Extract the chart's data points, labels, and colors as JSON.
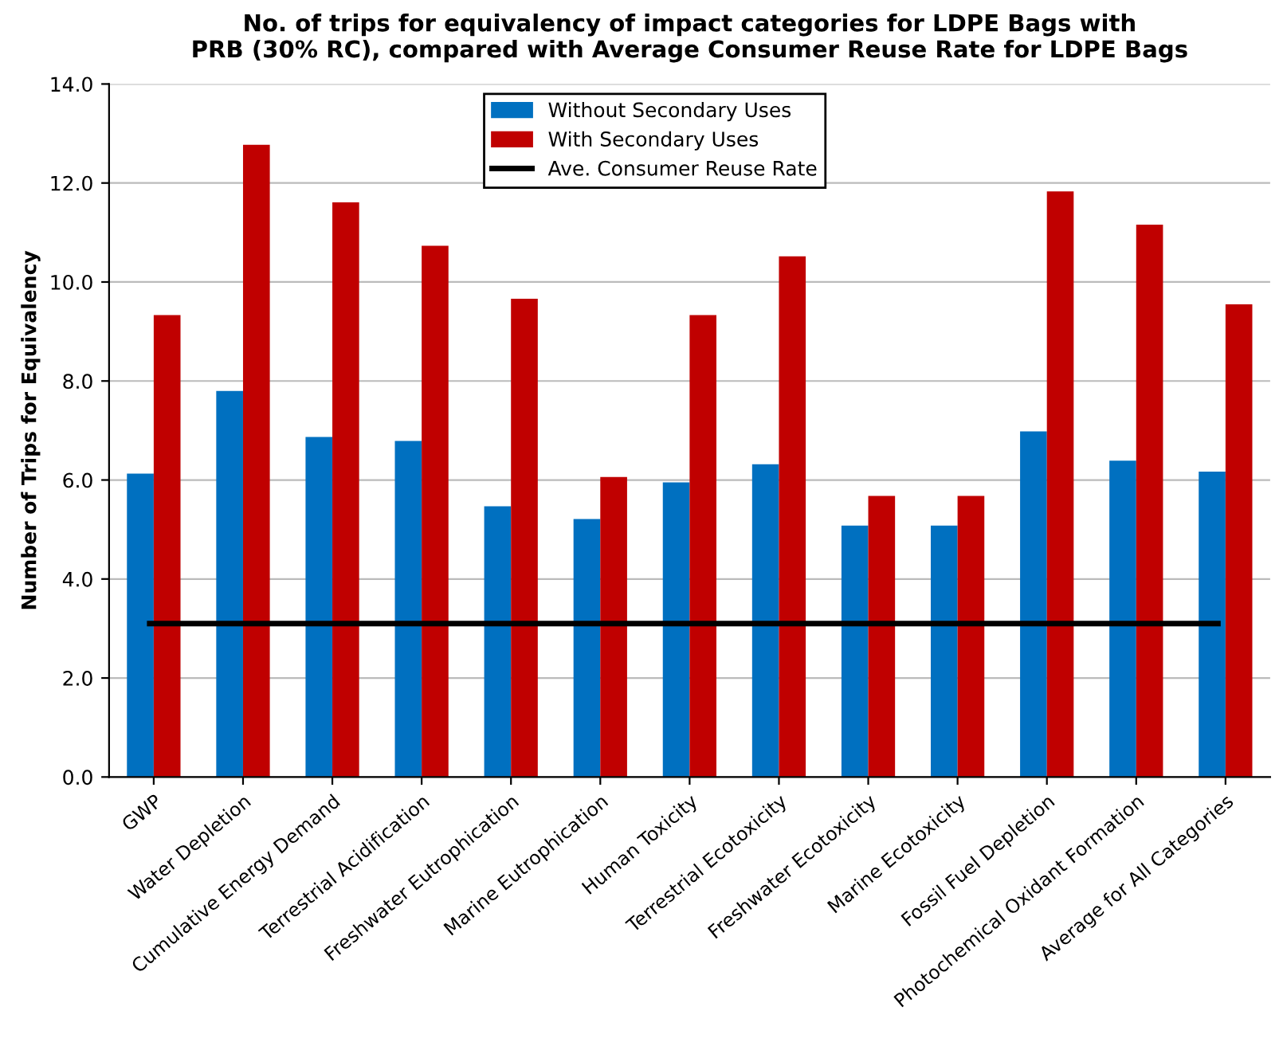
{
  "chart_data": {
    "type": "bar",
    "title": "No. of trips for equivalency of impact categories for LDPE Bags with\nPRB (30% RC), compared with Average Consumer Reuse Rate for LDPE Bags",
    "ylabel": "Number of Trips for Equivalency",
    "categories": [
      "GWP",
      "Water Depletion",
      "Cumulative Energy Demand",
      "Terrestrial Acidification",
      "Freshwater Eutrophication",
      "Marine Eutrophication",
      "Human Toxicity",
      "Terrestrial Ecotoxicity",
      "Freshwater Ecotoxicity",
      "Marine Ecotoxicity",
      "Fossil Fuel Depletion",
      "Photochemical Oxidant Formation",
      "Average for All Categories"
    ],
    "series": [
      {
        "name": "Without Secondary Uses",
        "color": "#0070c0",
        "values": [
          6.13,
          7.8,
          6.87,
          6.79,
          5.47,
          5.21,
          5.95,
          6.32,
          5.08,
          5.08,
          6.98,
          6.39,
          6.17
        ]
      },
      {
        "name": "With Secondary Uses",
        "color": "#c00000",
        "values": [
          9.33,
          12.77,
          11.61,
          10.73,
          9.66,
          6.06,
          9.33,
          10.52,
          5.68,
          5.68,
          11.83,
          11.16,
          9.55
        ]
      }
    ],
    "ref_lines": [
      {
        "axis": "y",
        "value": 3.1,
        "label": "Ave. Consumer Reuse Rate",
        "color": "#000000"
      }
    ],
    "ylim": [
      0,
      14
    ],
    "yticks": [
      {
        "value": 0,
        "label": "0.0"
      },
      {
        "value": 2,
        "label": "2.0"
      },
      {
        "value": 4,
        "label": "4.0"
      },
      {
        "value": 6,
        "label": "6.0"
      },
      {
        "value": 8,
        "label": "8.0"
      },
      {
        "value": 10,
        "label": "10.0"
      },
      {
        "value": 12,
        "label": "12.0"
      },
      {
        "value": 14,
        "label": "14.0"
      }
    ],
    "grid": "y",
    "legend": "top"
  }
}
